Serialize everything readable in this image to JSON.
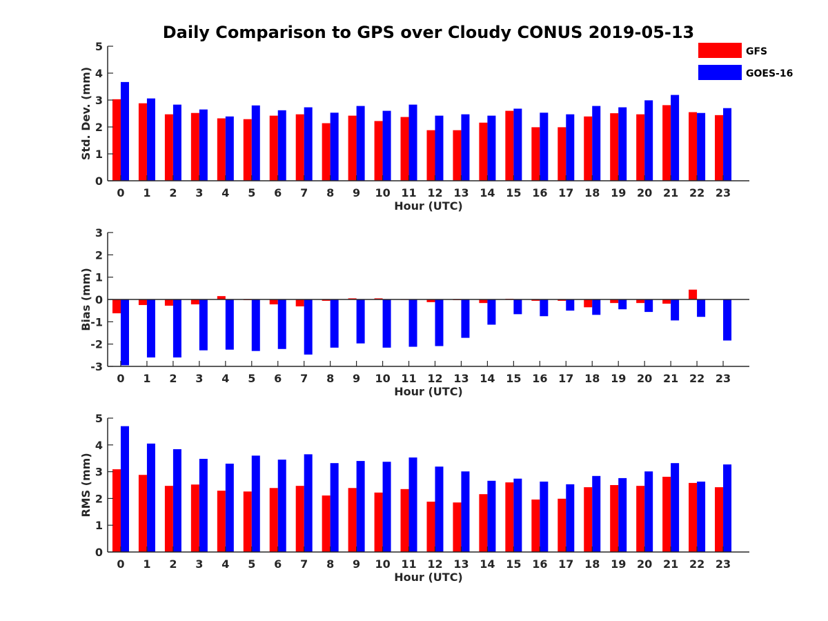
{
  "chart_data": {
    "title": "Daily Comparison to GPS over Cloudy CONUS 2019-05-13",
    "legend": [
      {
        "name": "GFS",
        "color": "#ff0000"
      },
      {
        "name": "GOES-16",
        "color": "#0000ff"
      }
    ],
    "legend_position": "top-right",
    "panels": [
      {
        "type": "bar",
        "ylabel": "Std. Dev. (mm)",
        "xlabel": "Hour (UTC)",
        "ylim": [
          0,
          5
        ],
        "yticks": [
          0,
          1,
          2,
          3,
          4,
          5
        ],
        "categories": [
          "0",
          "1",
          "2",
          "3",
          "4",
          "5",
          "6",
          "7",
          "8",
          "9",
          "10",
          "11",
          "12",
          "13",
          "14",
          "15",
          "16",
          "17",
          "18",
          "19",
          "20",
          "21",
          "22",
          "23"
        ],
        "series": [
          {
            "name": "GFS",
            "values": [
              3.03,
              2.88,
              2.47,
              2.52,
              2.32,
              2.29,
              2.42,
              2.47,
              2.14,
              2.42,
              2.22,
              2.37,
              1.88,
              1.88,
              2.16,
              2.6,
              1.99,
              1.99,
              2.39,
              2.51,
              2.47,
              2.81,
              2.55,
              2.44
            ]
          },
          {
            "name": "GOES-16",
            "values": [
              3.67,
              3.06,
              2.83,
              2.65,
              2.39,
              2.8,
              2.62,
              2.73,
              2.53,
              2.78,
              2.6,
              2.83,
              2.42,
              2.47,
              2.42,
              2.68,
              2.53,
              2.47,
              2.78,
              2.73,
              2.99,
              3.19,
              2.52,
              2.7
            ]
          }
        ]
      },
      {
        "type": "bar",
        "ylabel": "Bias (mm)",
        "xlabel": "Hour (UTC)",
        "ylim": [
          -3,
          3
        ],
        "yticks": [
          -3,
          -2,
          -1,
          0,
          1,
          2,
          3
        ],
        "categories": [
          "0",
          "1",
          "2",
          "3",
          "4",
          "5",
          "6",
          "7",
          "8",
          "9",
          "10",
          "11",
          "12",
          "13",
          "14",
          "15",
          "16",
          "17",
          "18",
          "19",
          "20",
          "21",
          "22",
          "23"
        ],
        "series": [
          {
            "name": "GFS",
            "values": [
              -0.62,
              -0.25,
              -0.28,
              -0.22,
              0.15,
              -0.03,
              -0.22,
              -0.31,
              -0.06,
              0.05,
              0.05,
              -0.02,
              -0.12,
              -0.03,
              -0.16,
              0.03,
              -0.06,
              -0.06,
              -0.35,
              -0.16,
              -0.16,
              -0.19,
              0.44,
              -0.01
            ]
          },
          {
            "name": "GOES-16",
            "values": [
              -2.95,
              -2.6,
              -2.6,
              -2.28,
              -2.25,
              -2.31,
              -2.22,
              -2.47,
              -2.16,
              -1.97,
              -2.16,
              -2.12,
              -2.09,
              -1.72,
              -1.13,
              -0.66,
              -0.75,
              -0.5,
              -0.69,
              -0.44,
              -0.56,
              -0.94,
              -0.78,
              -1.84
            ]
          }
        ]
      },
      {
        "type": "bar",
        "ylabel": "RMS (mm)",
        "xlabel": "Hour (UTC)",
        "ylim": [
          0,
          5
        ],
        "yticks": [
          0,
          1,
          2,
          3,
          4,
          5
        ],
        "categories": [
          "0",
          "1",
          "2",
          "3",
          "4",
          "5",
          "6",
          "7",
          "8",
          "9",
          "10",
          "11",
          "12",
          "13",
          "14",
          "15",
          "16",
          "17",
          "18",
          "19",
          "20",
          "21",
          "22",
          "23"
        ],
        "series": [
          {
            "name": "GFS",
            "values": [
              3.09,
              2.88,
              2.47,
              2.52,
              2.29,
              2.26,
              2.39,
              2.47,
              2.11,
              2.39,
              2.22,
              2.35,
              1.88,
              1.85,
              2.16,
              2.6,
              1.96,
              1.99,
              2.42,
              2.5,
              2.47,
              2.81,
              2.58,
              2.42
            ]
          },
          {
            "name": "GOES-16",
            "values": [
              4.7,
              4.05,
              3.84,
              3.48,
              3.3,
              3.6,
              3.45,
              3.65,
              3.32,
              3.4,
              3.37,
              3.53,
              3.19,
              3.01,
              2.66,
              2.74,
              2.63,
              2.53,
              2.84,
              2.76,
              3.01,
              3.32,
              2.63,
              3.27
            ]
          }
        ]
      }
    ]
  }
}
